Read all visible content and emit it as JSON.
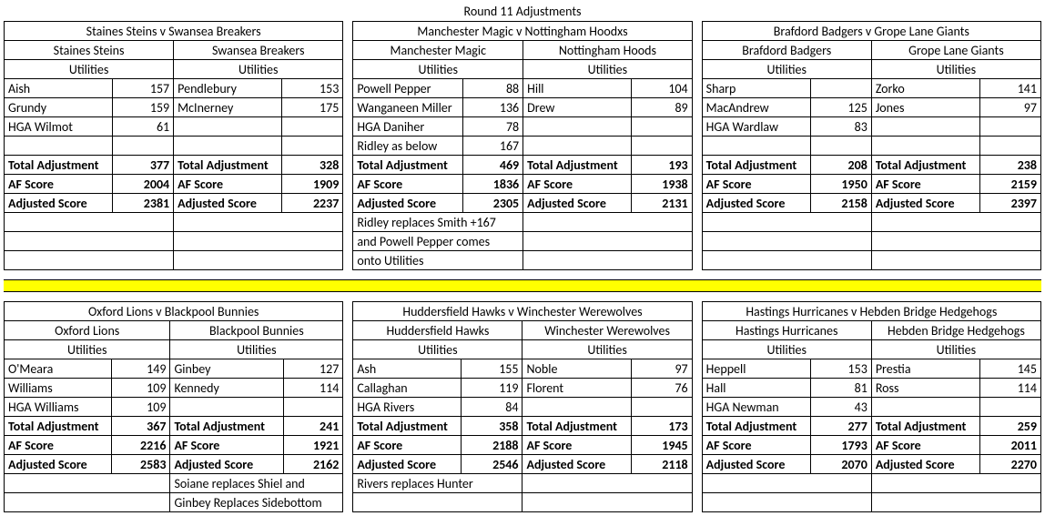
{
  "title": "Round 11 Adjustments",
  "labels": {
    "utilities": "Utilities",
    "total_adj": "Total Adjustment",
    "af_score": "AF Score",
    "adj_score": "Adjusted Score"
  },
  "matches": [
    {
      "title": "Staines Steins v Swansea Breakers",
      "teams": [
        {
          "name": "Staines Steins",
          "utils": [
            [
              "Aish",
              "157"
            ],
            [
              "Grundy",
              "159"
            ],
            [
              "HGA Wilmot",
              "61"
            ],
            [
              "",
              ""
            ]
          ],
          "totals": {
            "adj": "377",
            "af": "2004",
            "adjscore": "2381"
          }
        },
        {
          "name": "Swansea Breakers",
          "utils": [
            [
              "Pendlebury",
              "153"
            ],
            [
              "McInerney",
              "175"
            ],
            [
              "",
              ""
            ],
            [
              "",
              ""
            ]
          ],
          "totals": {
            "adj": "328",
            "af": "1909",
            "adjscore": "2237"
          }
        }
      ],
      "notes": [
        "",
        "",
        ""
      ]
    },
    {
      "title": "Manchester Magic v Nottingham Hoodxs",
      "teams": [
        {
          "name": "Manchester Magic",
          "utils": [
            [
              "Powell Pepper",
              "88"
            ],
            [
              "Wanganeen Miller",
              "136"
            ],
            [
              "HGA Daniher",
              "78"
            ],
            [
              "Ridley as below",
              "167"
            ]
          ],
          "totals": {
            "adj": "469",
            "af": "1836",
            "adjscore": "2305"
          }
        },
        {
          "name": "Nottingham Hoods",
          "utils": [
            [
              "Hill",
              "104"
            ],
            [
              "Drew",
              "89"
            ],
            [
              "",
              ""
            ],
            [
              "",
              ""
            ]
          ],
          "totals": {
            "adj": "193",
            "af": "1938",
            "adjscore": "2131"
          }
        }
      ],
      "notes": [
        "Ridley replaces  Smith +167",
        "and Powell Pepper comes",
        "onto Utilities"
      ]
    },
    {
      "title": "Brafdord Badgers v Grope Lane Giants",
      "teams": [
        {
          "name": "Brafdord Badgers",
          "utils": [
            [
              "Sharp",
              ""
            ],
            [
              "MacAndrew",
              "125"
            ],
            [
              "HGA Wardlaw",
              "83"
            ],
            [
              "",
              ""
            ]
          ],
          "totals": {
            "adj": "208",
            "af": "1950",
            "adjscore": "2158"
          }
        },
        {
          "name": "Grope Lane Giants",
          "utils": [
            [
              "Zorko",
              "141"
            ],
            [
              "Jones",
              "97"
            ],
            [
              "",
              ""
            ],
            [
              "",
              ""
            ]
          ],
          "totals": {
            "adj": "238",
            "af": "2159",
            "adjscore": "2397"
          }
        }
      ],
      "notes": [
        "",
        "",
        ""
      ]
    },
    {
      "title": "Oxford Lions v Blackpool Bunnies",
      "teams": [
        {
          "name": "Oxford Lions",
          "utils": [
            [
              "O'Meara",
              "149"
            ],
            [
              "Williams",
              "109"
            ],
            [
              "HGA Williams",
              "109"
            ]
          ],
          "totals": {
            "adj": "367",
            "af": "2216",
            "adjscore": "2583"
          }
        },
        {
          "name": "Blackpool Bunnies",
          "utils": [
            [
              "Ginbey",
              "127"
            ],
            [
              "Kennedy",
              "114"
            ],
            [
              "",
              ""
            ]
          ],
          "totals": {
            "adj": "241",
            "af": "1921",
            "adjscore": "2162"
          }
        }
      ],
      "notes": [
        "Soiane replaces Shiel and",
        "Ginbey Replaces Sidebottom"
      ],
      "note_col": 1
    },
    {
      "title": "Huddersfield Hawks v Winchester Werewolves",
      "teams": [
        {
          "name": "Huddersfield Hawks",
          "utils": [
            [
              "Ash",
              "155"
            ],
            [
              "Callaghan",
              "119"
            ],
            [
              "HGA Rivers",
              "84"
            ]
          ],
          "totals": {
            "adj": "358",
            "af": "2188",
            "adjscore": "2546"
          }
        },
        {
          "name": "Winchester Werewolves",
          "utils": [
            [
              "Noble",
              "97"
            ],
            [
              "Florent",
              "76"
            ],
            [
              "",
              ""
            ]
          ],
          "totals": {
            "adj": "173",
            "af": "1945",
            "adjscore": "2118"
          }
        }
      ],
      "notes": [
        "Rivers replaces Hunter",
        ""
      ],
      "note_col": 0
    },
    {
      "title": "Hastings Hurricanes v Hebden Bridge Hedgehogs",
      "teams": [
        {
          "name": "Hastings Hurricanes",
          "utils": [
            [
              "Heppell",
              "153"
            ],
            [
              "Hall",
              "81"
            ],
            [
              "HGA Newman",
              "43"
            ]
          ],
          "totals": {
            "adj": "277",
            "af": "1793",
            "adjscore": "2070"
          }
        },
        {
          "name": "Hebden Bridge Hedgehogs",
          "utils": [
            [
              "Prestia",
              "145"
            ],
            [
              "Ross",
              "114"
            ],
            [
              "",
              ""
            ]
          ],
          "totals": {
            "adj": "259",
            "af": "2011",
            "adjscore": "2270"
          }
        }
      ],
      "notes": [
        "",
        ""
      ]
    }
  ]
}
